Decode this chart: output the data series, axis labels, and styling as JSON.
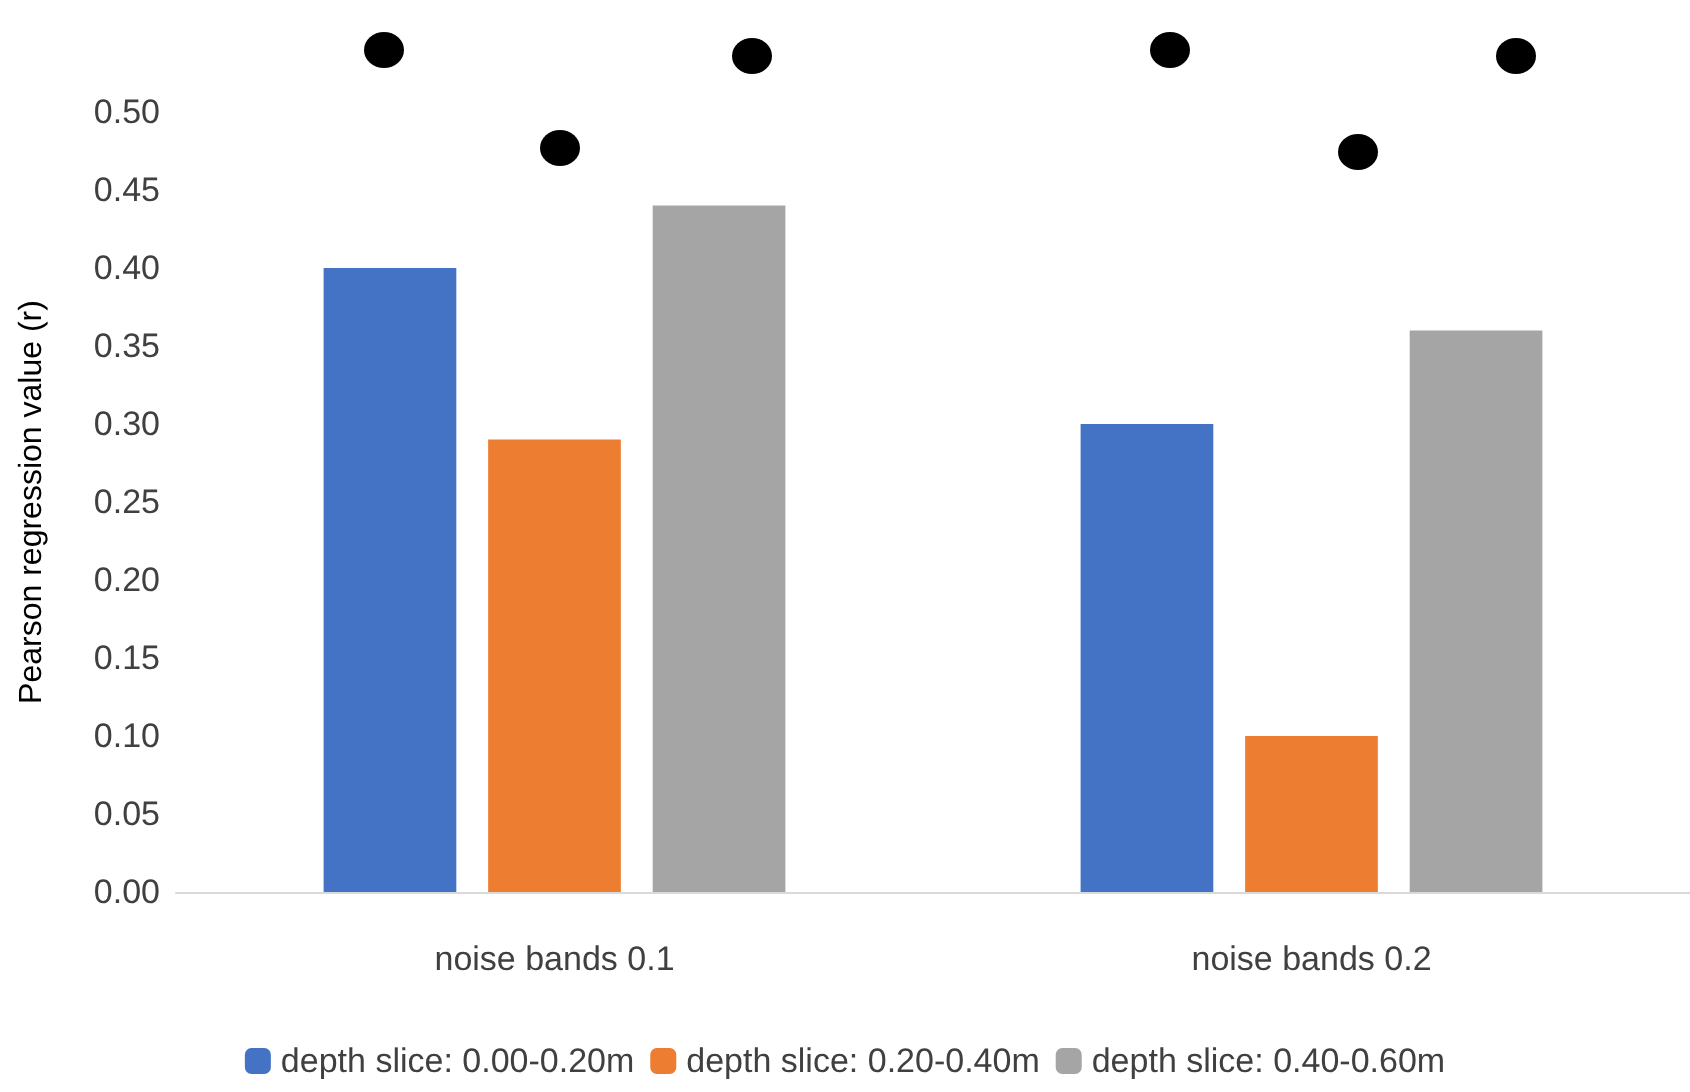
{
  "chart_data": {
    "type": "bar",
    "ylabel": "Pearson regression value (r)",
    "categories": [
      "noise bands 0.1",
      "noise bands 0.2"
    ],
    "series": [
      {
        "name": "depth slice: 0.00-0.20m",
        "color": "#4472c4",
        "values": [
          0.4,
          0.3
        ]
      },
      {
        "name": "depth slice: 0.20-0.40m",
        "color": "#ed7d31",
        "values": [
          0.29,
          0.1
        ]
      },
      {
        "name": "depth slice: 0.40-0.60m",
        "color": "#a5a5a5",
        "values": [
          0.44,
          0.36
        ]
      }
    ],
    "ylim": [
      0,
      0.5
    ],
    "yticks": [
      {
        "value": 0,
        "label": "0.00"
      },
      {
        "value": 0.05,
        "label": "0.05"
      },
      {
        "value": 0.1,
        "label": "0.10"
      },
      {
        "value": 0.15,
        "label": "0.15"
      },
      {
        "value": 0.2,
        "label": "0.20"
      },
      {
        "value": 0.25,
        "label": "0.25"
      },
      {
        "value": 0.3,
        "label": "0.30"
      },
      {
        "value": 0.35,
        "label": "0.35"
      },
      {
        "value": 0.4,
        "label": "0.40"
      },
      {
        "value": 0.45,
        "label": "0.45"
      },
      {
        "value": 0.5,
        "label": "0.50"
      }
    ],
    "legend": "bottom"
  }
}
